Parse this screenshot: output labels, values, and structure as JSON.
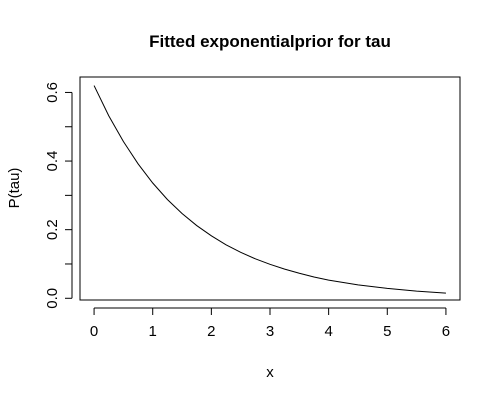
{
  "chart_data": {
    "type": "line",
    "title": "Fitted exponentialprior for tau",
    "xlabel": "x",
    "ylabel": "P(tau)",
    "xlim": [
      -0.24,
      6.24
    ],
    "ylim": [
      -0.005,
      0.645
    ],
    "x_ticks": [
      0,
      1,
      2,
      3,
      4,
      5,
      6
    ],
    "x_tick_labels": [
      "0",
      "1",
      "2",
      "3",
      "4",
      "5",
      "6"
    ],
    "y_ticks": [
      0.0,
      0.1,
      0.2,
      0.3,
      0.4,
      0.5,
      0.6
    ],
    "y_tick_labels": [
      "0.0",
      "",
      "0.2",
      "",
      "0.4",
      "",
      "0.6"
    ],
    "grid": false,
    "series": [
      {
        "x": [
          0,
          0.25,
          0.5,
          0.75,
          1,
          1.25,
          1.5,
          1.75,
          2,
          2.25,
          2.5,
          2.75,
          3,
          3.25,
          3.5,
          3.75,
          4,
          4.25,
          4.5,
          4.75,
          5,
          5.25,
          5.5,
          5.75,
          6
        ],
        "y": [
          0.62,
          0.532,
          0.457,
          0.392,
          0.336,
          0.288,
          0.247,
          0.212,
          0.182,
          0.156,
          0.134,
          0.115,
          0.099,
          0.085,
          0.073,
          0.062,
          0.053,
          0.046,
          0.039,
          0.034,
          0.029,
          0.025,
          0.021,
          0.018,
          0.015
        ]
      }
    ]
  }
}
